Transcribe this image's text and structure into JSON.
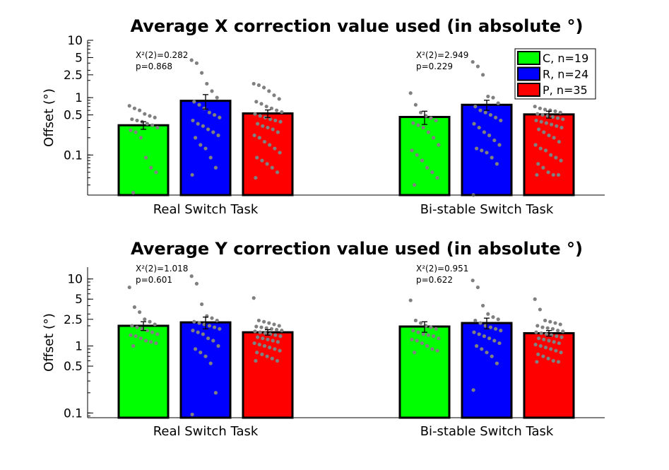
{
  "chart_data": [
    {
      "type": "bar",
      "title": "Average X correction value used (in absolute °)",
      "ylabel": "Offset (°)",
      "yscale": "log",
      "ylim": [
        0.02,
        10
      ],
      "yticks": [
        0.1,
        0.5,
        1,
        2.5,
        5,
        10
      ],
      "ytick_labels": [
        "0.1",
        "0.5",
        "1",
        "2.5",
        "5",
        "10"
      ],
      "grid": false,
      "categories": [
        "Real Switch Task",
        "Bi-stable Switch Task"
      ],
      "series": [
        {
          "name": "C, n=19",
          "color": "#00ff00",
          "values": [
            0.33,
            0.46
          ],
          "errors": [
            0.05,
            0.12
          ],
          "points": [
            [
              0.72,
              0.65,
              0.6,
              0.52,
              0.48,
              0.45,
              0.42,
              0.4,
              0.38,
              0.35,
              0.33,
              0.3,
              0.27,
              0.25,
              0.2,
              0.09,
              0.06,
              0.05,
              0.022
            ],
            [
              1.2,
              0.75,
              0.55,
              0.48,
              0.44,
              0.4,
              0.36,
              0.33,
              0.3,
              0.25,
              0.2,
              0.15,
              0.12,
              0.1,
              0.08,
              0.06,
              0.05,
              0.04,
              0.03
            ]
          ]
        },
        {
          "name": "R, n=24",
          "color": "#0000ff",
          "values": [
            0.88,
            0.75
          ],
          "errors": [
            0.25,
            0.15
          ],
          "points": [
            [
              4.5,
              4.0,
              2.7,
              1.75,
              1.3,
              1.0,
              0.85,
              0.75,
              0.65,
              0.55,
              0.5,
              0.45,
              0.4,
              0.35,
              0.32,
              0.28,
              0.25,
              0.22,
              0.2,
              0.15,
              0.13,
              0.09,
              0.06,
              0.045
            ],
            [
              4.2,
              3.5,
              2.5,
              1.05,
              1.0,
              0.8,
              0.7,
              0.6,
              0.55,
              0.5,
              0.45,
              0.4,
              0.35,
              0.3,
              0.25,
              0.22,
              0.18,
              0.15,
              0.13,
              0.12,
              0.11,
              0.09,
              0.07,
              0.02
            ]
          ]
        },
        {
          "name": "P, n=35",
          "color": "#ff0000",
          "values": [
            0.53,
            0.51
          ],
          "errors": [
            0.08,
            0.07
          ],
          "points": [
            [
              1.75,
              1.65,
              1.5,
              1.3,
              1.1,
              0.95,
              0.85,
              0.78,
              0.7,
              0.65,
              0.6,
              0.56,
              0.52,
              0.48,
              0.45,
              0.42,
              0.4,
              0.38,
              0.35,
              0.32,
              0.3,
              0.28,
              0.25,
              0.22,
              0.2,
              0.17,
              0.15,
              0.13,
              0.11,
              0.09,
              0.08,
              0.07,
              0.06,
              0.05,
              0.04
            ],
            [
              0.7,
              0.65,
              0.62,
              0.6,
              0.58,
              0.55,
              0.52,
              0.5,
              0.48,
              0.46,
              0.44,
              0.42,
              0.4,
              0.38,
              0.36,
              0.34,
              0.32,
              0.3,
              0.28,
              0.25,
              0.22,
              0.2,
              0.17,
              0.15,
              0.13,
              0.12,
              0.1,
              0.09,
              0.08,
              0.07,
              0.06,
              0.05,
              0.045,
              0.045,
              0.045
            ]
          ]
        }
      ],
      "annotations": [
        {
          "category": 0,
          "lines": [
            "X²(2)=0.282",
            "p=0.868"
          ]
        },
        {
          "category": 1,
          "lines": [
            "X²(2)=2.949",
            "p=0.229"
          ]
        }
      ],
      "legend": {
        "placement": "top-right",
        "entries": [
          "C, n=19",
          "R, n=24",
          "P, n=35"
        ]
      }
    },
    {
      "type": "bar",
      "title": "Average Y correction value used (in absolute °)",
      "ylabel": "Offset (°)",
      "yscale": "log",
      "ylim": [
        0.085,
        15
      ],
      "yticks": [
        0.1,
        0.5,
        1,
        2.5,
        5,
        10
      ],
      "ytick_labels": [
        "0.1",
        "0.5",
        "1",
        "2.5",
        "5",
        "10"
      ],
      "grid": false,
      "categories": [
        "Real Switch Task",
        "Bi-stable Switch Task"
      ],
      "series": [
        {
          "name": "C",
          "color": "#00ff00",
          "values": [
            2.0,
            1.95
          ],
          "errors": [
            0.3,
            0.35
          ],
          "points": [
            [
              7.5,
              3.8,
              3.2,
              2.5,
              2.3,
              2.1,
              2.0,
              1.9,
              1.8,
              1.7,
              1.6,
              1.5,
              1.45,
              1.4,
              1.3,
              1.2,
              1.15,
              1.1,
              1.0
            ],
            [
              4.8,
              2.4,
              2.2,
              2.0,
              1.9,
              1.8,
              1.7,
              1.6,
              1.5,
              1.45,
              1.4,
              1.3,
              1.25,
              1.2,
              1.1,
              1.0,
              0.9,
              0.85,
              0.8
            ]
          ]
        },
        {
          "name": "R",
          "color": "#0000ff",
          "values": [
            2.25,
            2.2
          ],
          "errors": [
            0.45,
            0.4
          ],
          "points": [
            [
              11,
              8.5,
              4.2,
              2.8,
              2.6,
              2.4,
              2.3,
              2.2,
              2.1,
              2.0,
              1.9,
              1.8,
              1.7,
              1.6,
              1.5,
              1.3,
              1.2,
              1.0,
              0.9,
              0.8,
              0.7,
              0.55,
              0.2,
              0.095
            ],
            [
              9.5,
              7.5,
              4.0,
              3.0,
              2.7,
              2.5,
              2.4,
              2.2,
              2.0,
              1.9,
              1.8,
              1.7,
              1.6,
              1.5,
              1.4,
              1.3,
              1.2,
              1.1,
              1.0,
              0.9,
              0.8,
              0.7,
              0.55,
              0.22
            ]
          ]
        },
        {
          "name": "P",
          "color": "#ff0000",
          "values": [
            1.6,
            1.55
          ],
          "errors": [
            0.15,
            0.15
          ],
          "points": [
            [
              5.2,
              2.4,
              2.3,
              2.2,
              2.1,
              2.0,
              1.95,
              1.9,
              1.85,
              1.8,
              1.75,
              1.7,
              1.65,
              1.6,
              1.55,
              1.5,
              1.45,
              1.4,
              1.35,
              1.3,
              1.25,
              1.2,
              1.15,
              1.1,
              1.05,
              1.0,
              0.95,
              0.9,
              0.85,
              0.8,
              0.75,
              0.7,
              0.65,
              0.6,
              0.6
            ],
            [
              5.0,
              3.5,
              2.4,
              2.3,
              2.2,
              2.1,
              2.0,
              1.9,
              1.85,
              1.8,
              1.7,
              1.65,
              1.6,
              1.55,
              1.5,
              1.45,
              1.4,
              1.35,
              1.3,
              1.25,
              1.2,
              1.15,
              1.1,
              1.05,
              1.0,
              0.95,
              0.9,
              0.85,
              0.8,
              0.75,
              0.7,
              0.65,
              0.6,
              0.58,
              0.58
            ]
          ]
        }
      ],
      "annotations": [
        {
          "category": 0,
          "lines": [
            "X²(2)=1.018",
            "p=0.601"
          ]
        },
        {
          "category": 1,
          "lines": [
            "X²(2)=0.951",
            "p=0.622"
          ]
        }
      ]
    }
  ]
}
